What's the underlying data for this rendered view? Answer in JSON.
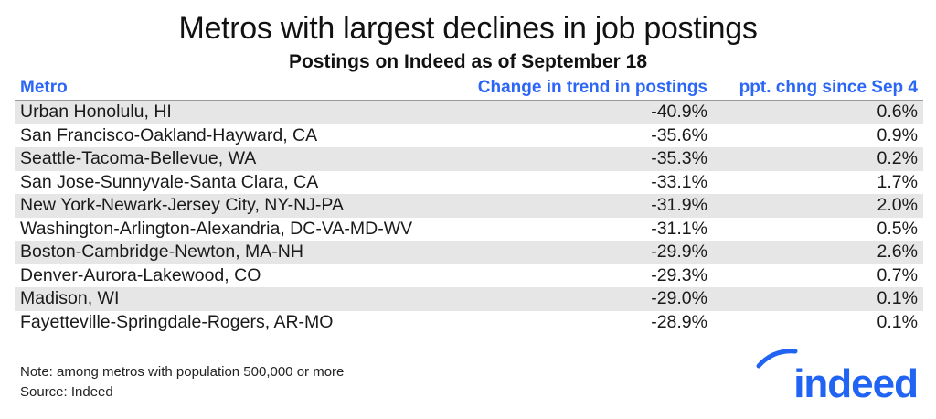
{
  "chart_data": {
    "type": "table",
    "title": "Metros with largest declines in job postings",
    "subtitle": "Postings on Indeed as of September 18",
    "columns": [
      "Metro",
      "Change in trend in postings",
      "ppt. chng since Sep 4"
    ],
    "rows": [
      [
        "Urban Honolulu, HI",
        "-40.9%",
        "0.6%"
      ],
      [
        "San Francisco-Oakland-Hayward, CA",
        "-35.6%",
        "0.9%"
      ],
      [
        "Seattle-Tacoma-Bellevue, WA",
        "-35.3%",
        "0.2%"
      ],
      [
        "San Jose-Sunnyvale-Santa Clara, CA",
        "-33.1%",
        "1.7%"
      ],
      [
        "New York-Newark-Jersey City, NY-NJ-PA",
        "-31.9%",
        "2.0%"
      ],
      [
        "Washington-Arlington-Alexandria, DC-VA-MD-WV",
        "-31.1%",
        "0.5%"
      ],
      [
        "Boston-Cambridge-Newton, MA-NH",
        "-29.9%",
        "2.6%"
      ],
      [
        "Denver-Aurora-Lakewood, CO",
        "-29.3%",
        "0.7%"
      ],
      [
        "Madison, WI",
        "-29.0%",
        "0.1%"
      ],
      [
        "Fayetteville-Springdale-Rogers, AR-MO",
        "-28.9%",
        "0.1%"
      ]
    ],
    "header_color": "#2b66f6",
    "stripe_color": "#e6e6e6"
  },
  "notes": {
    "note": "Note: among metros with population 500,000 or more",
    "source": "Source: Indeed"
  },
  "logo": {
    "text": "indeed",
    "color": "#2164f3"
  }
}
